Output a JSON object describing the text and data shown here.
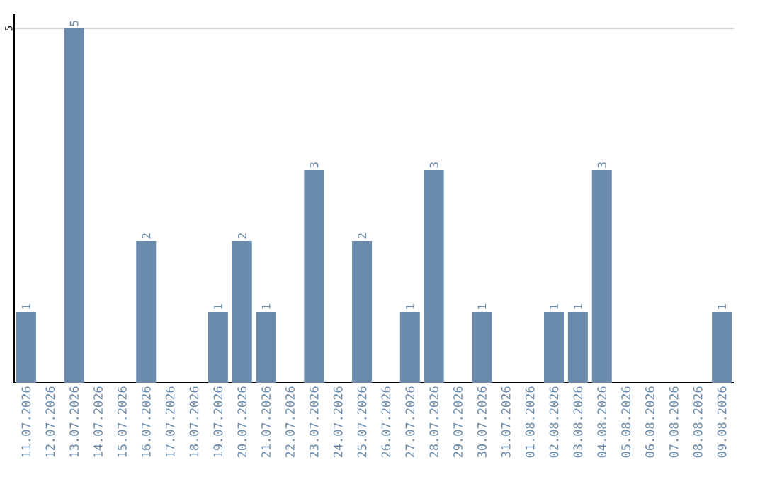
{
  "chart_data": {
    "type": "bar",
    "categories": [
      "11.07.2026",
      "12.07.2026",
      "13.07.2026",
      "14.07.2026",
      "15.07.2026",
      "16.07.2026",
      "17.07.2026",
      "18.07.2026",
      "19.07.2026",
      "20.07.2026",
      "21.07.2026",
      "22.07.2026",
      "23.07.2026",
      "24.07.2026",
      "25.07.2026",
      "26.07.2026",
      "27.07.2026",
      "28.07.2026",
      "29.07.2026",
      "30.07.2026",
      "31.07.2026",
      "01.08.2026",
      "02.08.2026",
      "03.08.2026",
      "04.08.2026",
      "05.08.2026",
      "06.08.2026",
      "07.08.2026",
      "08.08.2026",
      "09.08.2026"
    ],
    "values": [
      1,
      0,
      5,
      0,
      0,
      2,
      0,
      0,
      1,
      2,
      1,
      0,
      3,
      0,
      2,
      0,
      1,
      3,
      0,
      1,
      0,
      0,
      1,
      1,
      3,
      0,
      0,
      0,
      0,
      1
    ],
    "value_labels": [
      "1",
      null,
      "5",
      null,
      null,
      "2",
      null,
      null,
      "1",
      "2",
      "1",
      null,
      "3",
      null,
      "2",
      null,
      "1",
      "3",
      null,
      "1",
      null,
      null,
      "1",
      "1",
      "3",
      null,
      null,
      null,
      null,
      "1"
    ],
    "color": "#6a8bab",
    "ylim": [
      0,
      5.2
    ],
    "yticks": [
      5
    ],
    "grid": "y"
  }
}
